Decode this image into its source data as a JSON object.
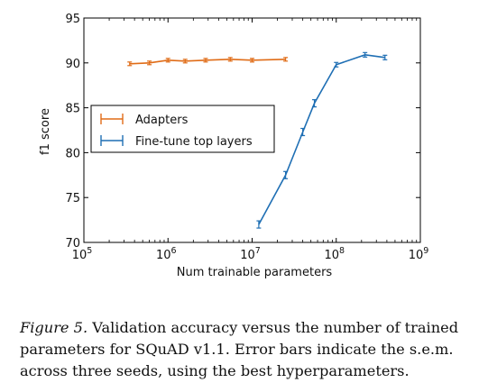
{
  "chart_data": {
    "type": "line",
    "xlabel": "Num trainable parameters",
    "ylabel": "f1 score",
    "xscale": "log",
    "xlim": [
      100000,
      1000000000
    ],
    "ylim": [
      70,
      95
    ],
    "yticks": [
      70,
      75,
      80,
      85,
      90,
      95
    ],
    "xticks": [
      {
        "value": 100000,
        "base": "10",
        "exp": "5"
      },
      {
        "value": 1000000,
        "base": "10",
        "exp": "6"
      },
      {
        "value": 10000000,
        "base": "10",
        "exp": "7"
      },
      {
        "value": 100000000,
        "base": "10",
        "exp": "8"
      },
      {
        "value": 1000000000,
        "base": "10",
        "exp": "9"
      }
    ],
    "grid": false,
    "legend_position": "center-left",
    "series": [
      {
        "name": "Adapters",
        "color": "#e06c17",
        "x": [
          350000,
          600000,
          1000000,
          1600000,
          2800000,
          5500000,
          10000000,
          25000000
        ],
        "y": [
          89.9,
          90.0,
          90.3,
          90.2,
          90.3,
          90.4,
          90.3,
          90.4
        ],
        "err": [
          0.1,
          0.1,
          0.1,
          0.1,
          0.1,
          0.1,
          0.1,
          0.1
        ]
      },
      {
        "name": "Fine-tune top layers",
        "color": "#1f6fb4",
        "x": [
          12000000,
          25000000,
          40000000,
          55000000,
          100000000,
          220000000,
          380000000
        ],
        "y": [
          72.0,
          77.5,
          82.3,
          85.5,
          89.8,
          90.9,
          90.6
        ],
        "err": [
          0.3,
          0.3,
          0.3,
          0.3,
          0.15,
          0.15,
          0.15
        ]
      }
    ]
  },
  "caption": {
    "label": "Figure 5.",
    "text": "  Validation accuracy versus the number of trained parameters for SQuAD v1.1. Error bars indicate the s.e.m. across three seeds, using the best hyperparameters."
  }
}
